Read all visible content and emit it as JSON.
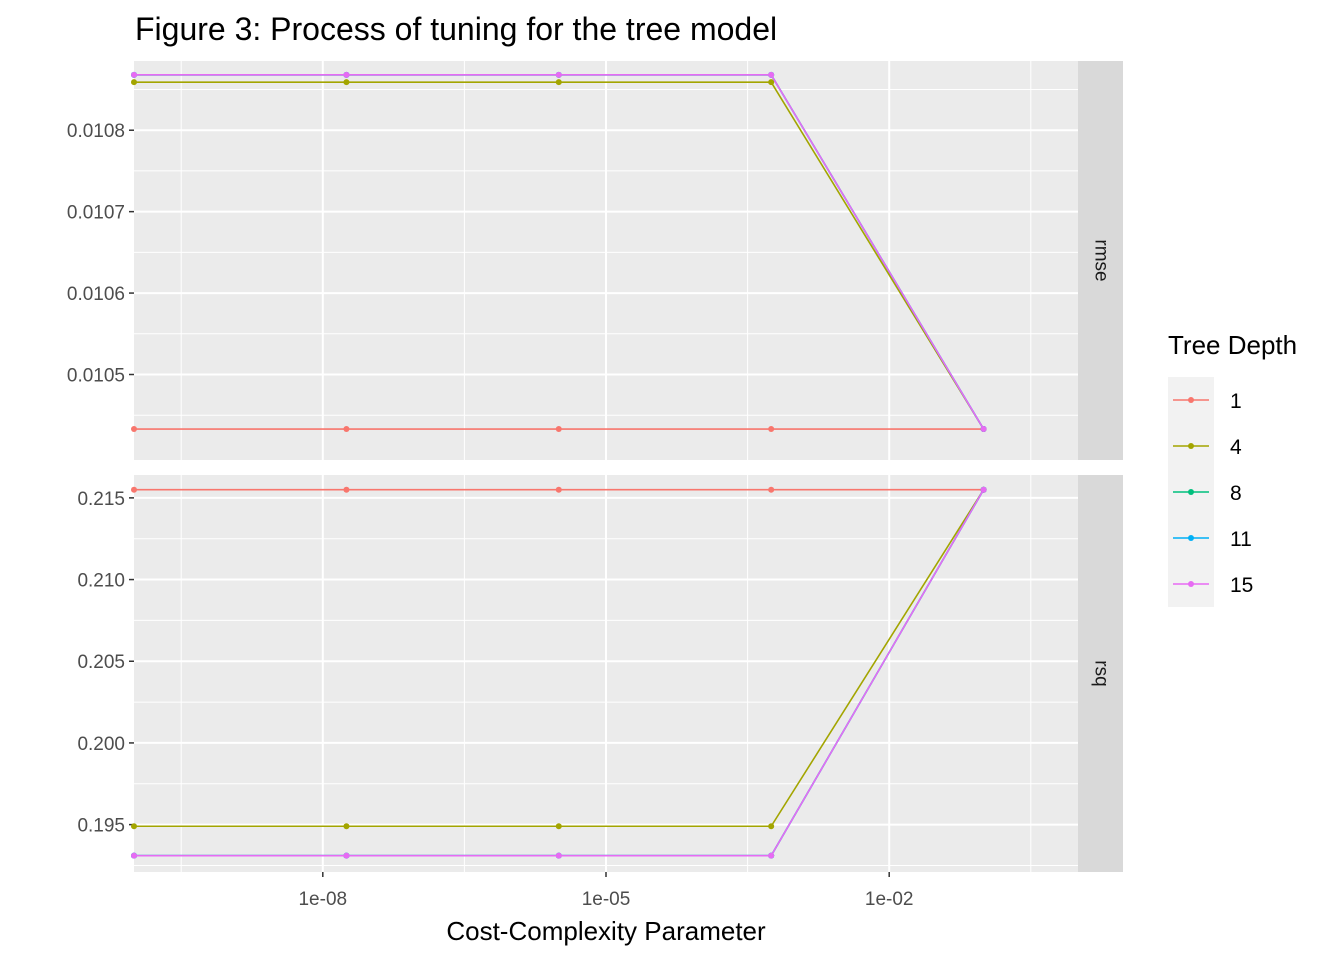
{
  "chart_data": {
    "type": "line",
    "title": "Figure 3: Process of tuning for the tree model",
    "xlabel": "Cost-Complexity Parameter",
    "x_scale": "log10",
    "x_ticks": [
      1e-08,
      1e-05,
      0.01
    ],
    "x_tick_labels": [
      "1e-08",
      "1e-05",
      "1e-02"
    ],
    "xlim": [
      1e-10,
      1
    ],
    "x": [
      1e-10,
      1.78e-08,
      3.16e-06,
      0.000562,
      0.1
    ],
    "legend_title": "Tree Depth",
    "legend_position": "right",
    "grid": true,
    "panels": [
      {
        "strip": "rmse",
        "ylim": [
          0.010395,
          0.010885
        ],
        "y_ticks": [
          0.0105,
          0.0106,
          0.0107,
          0.0108
        ],
        "y_tick_labels": [
          "0.0105",
          "0.0106",
          "0.0107",
          "0.0108"
        ],
        "series": [
          {
            "name": "1",
            "color": "#F8766D",
            "values": [
              0.010433,
              0.010433,
              0.010433,
              0.010433,
              0.010433
            ]
          },
          {
            "name": "4",
            "color": "#A3A500",
            "values": [
              0.010859,
              0.010859,
              0.010859,
              0.010859,
              0.010433
            ]
          },
          {
            "name": "8",
            "color": "#00BF7D",
            "values": [
              0.010868,
              0.010868,
              0.010868,
              0.010868,
              0.010433
            ]
          },
          {
            "name": "11",
            "color": "#00B0F6",
            "values": [
              0.010868,
              0.010868,
              0.010868,
              0.010868,
              0.010433
            ]
          },
          {
            "name": "15",
            "color": "#E76BF3",
            "values": [
              0.010868,
              0.010868,
              0.010868,
              0.010868,
              0.010433
            ]
          }
        ]
      },
      {
        "strip": "rsq",
        "ylim": [
          0.1921,
          0.2164
        ],
        "y_ticks": [
          0.195,
          0.2,
          0.205,
          0.21,
          0.215
        ],
        "y_tick_labels": [
          "0.195",
          "0.200",
          "0.205",
          "0.210",
          "0.215"
        ],
        "series": [
          {
            "name": "1",
            "color": "#F8766D",
            "values": [
              0.2155,
              0.2155,
              0.2155,
              0.2155,
              0.2155
            ]
          },
          {
            "name": "4",
            "color": "#A3A500",
            "values": [
              0.1949,
              0.1949,
              0.1949,
              0.1949,
              0.2155
            ]
          },
          {
            "name": "8",
            "color": "#00BF7D",
            "values": [
              0.1931,
              0.1931,
              0.1931,
              0.1931,
              0.2155
            ]
          },
          {
            "name": "11",
            "color": "#00B0F6",
            "values": [
              0.1931,
              0.1931,
              0.1931,
              0.1931,
              0.2155
            ]
          },
          {
            "name": "15",
            "color": "#E76BF3",
            "values": [
              0.1931,
              0.1931,
              0.1931,
              0.1931,
              0.2155
            ]
          }
        ]
      }
    ]
  }
}
